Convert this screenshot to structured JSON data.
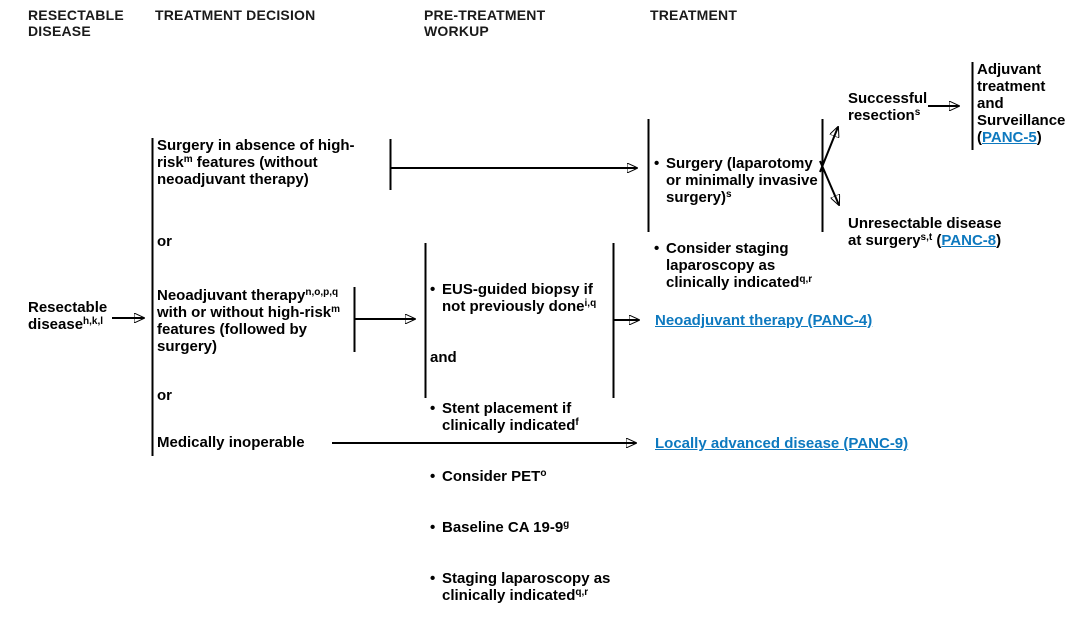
{
  "colors": {
    "link": "#0e79bf",
    "ink": "#000000"
  },
  "headers": {
    "col1": "RESECTABLE\nDISEASE",
    "col2": "TREATMENT DECISION",
    "col3": "PRE-TREATMENT\nWORKUP",
    "col4": "TREATMENT"
  },
  "resectable": {
    "label": "Resectable\ndisease^{h,k,l}"
  },
  "decision": {
    "or_label": "or",
    "option_surgery": "Surgery in absence of high-\nrisk^{m} features (without\nneoadjuvant therapy)",
    "option_neoadjuvant": "Neoadjuvant therapy^{n,o,p,q}\nwith or without high-risk^{m}\nfeatures (followed by\nsurgery)",
    "option_inoperable": "Medically inoperable"
  },
  "workup": {
    "items": [
      "EUS-guided biopsy if\nnot previously done^{i,q}",
      "and",
      "Stent placement if\nclinically indicated^{f}",
      "Consider PET^{o}",
      "Baseline CA 19-9^{g}",
      "Staging laparoscopy as\nclinically indicated^{q,r}"
    ]
  },
  "treatment": {
    "surgery_items": [
      "Surgery (laparotomy\nor minimally invasive\nsurgery)^{s}",
      "Consider staging\nlaparoscopy as\nclinically indicated^{q,r}"
    ],
    "neoadjuvant_link": "Neoadjuvant therapy (PANC-4)",
    "locally_advanced_link": "Locally advanced disease (PANC-9)",
    "successful_resection": "Successful\nresection^{s}",
    "adjuvant": {
      "prefix": "Adjuvant\ntreatment\nand\nSurveillance\n(",
      "link": "PANC-5",
      "suffix": ")"
    },
    "unresectable": {
      "prefix": "Unresectable disease\nat surgery^{s,t} (",
      "link": "PANC-8",
      "suffix": ")"
    }
  }
}
